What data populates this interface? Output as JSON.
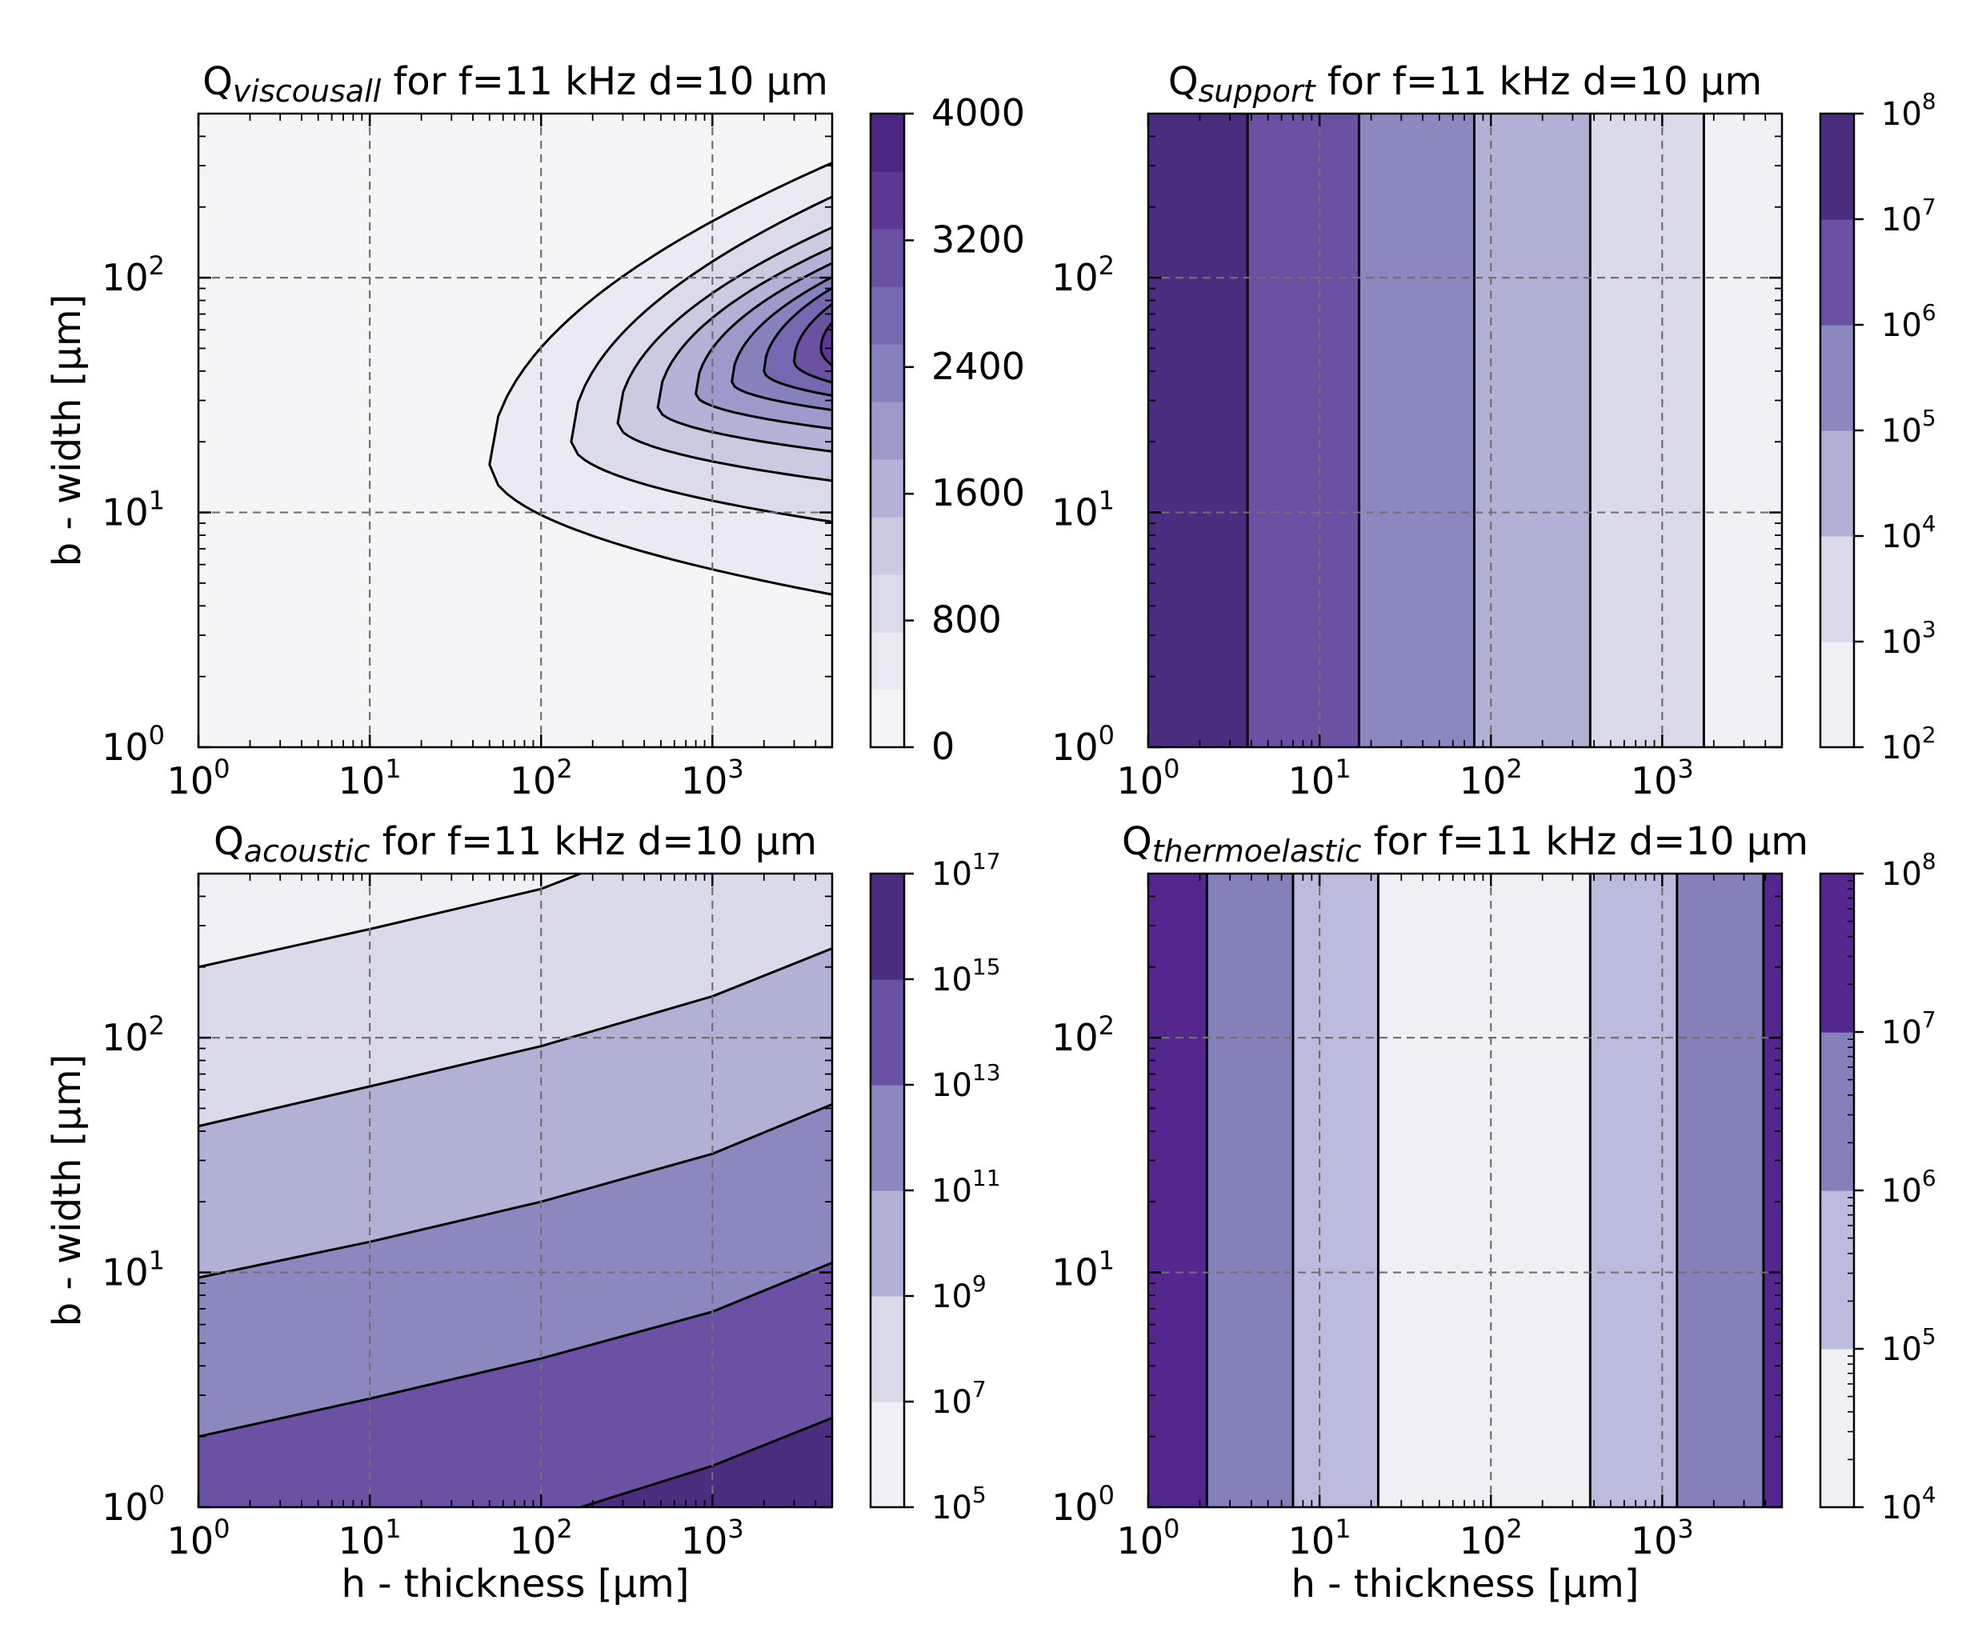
{
  "figure": {
    "kind": "2x2 contour-filled subplot grid"
  },
  "chart_data": [
    {
      "type": "heatmap",
      "id": "viscous",
      "title_main": "Q",
      "title_sub": "viscousall",
      "title_rest": " for f=11 kHz d=10 µm",
      "xlabel": "",
      "ylabel": "b - width [µm]",
      "xscale": "log",
      "yscale": "log",
      "xlim": [
        1,
        5000
      ],
      "ylim": [
        1,
        500
      ],
      "xticks": [
        {
          "v": 1,
          "m": "10",
          "e": "0"
        },
        {
          "v": 10,
          "m": "10",
          "e": "1"
        },
        {
          "v": 100,
          "m": "10",
          "e": "2"
        },
        {
          "v": 1000,
          "m": "10",
          "e": "3"
        }
      ],
      "yticks": [
        {
          "v": 1,
          "m": "10",
          "e": "0"
        },
        {
          "v": 10,
          "m": "10",
          "e": "1"
        },
        {
          "v": 100,
          "m": "10",
          "e": "2"
        }
      ],
      "grid": true,
      "pattern": "nested",
      "background_color": "#f5f5f7",
      "contours": [
        {
          "level": 400,
          "xmin": 50,
          "ylow": 4.4,
          "ypeak": 16,
          "yhigh": 320,
          "color": "#ebe9f3"
        },
        {
          "level": 800,
          "xmin": 150,
          "ylow": 9,
          "ypeak": 20,
          "yhigh": 230,
          "color": "#dcdbec"
        },
        {
          "level": 1200,
          "xmin": 280,
          "ylow": 13.5,
          "ypeak": 24,
          "yhigh": 170,
          "color": "#cacae3"
        },
        {
          "level": 1600,
          "xmin": 480,
          "ylow": 18,
          "ypeak": 28,
          "yhigh": 140,
          "color": "#b4b2d7"
        },
        {
          "level": 2000,
          "xmin": 800,
          "ylow": 22.5,
          "ypeak": 32,
          "yhigh": 120,
          "color": "#9d9acb"
        },
        {
          "level": 2400,
          "xmin": 1300,
          "ylow": 27,
          "ypeak": 36,
          "yhigh": 105,
          "color": "#8582bd"
        },
        {
          "level": 2800,
          "xmin": 2000,
          "ylow": 31,
          "ypeak": 40,
          "yhigh": 95,
          "color": "#7667b0"
        },
        {
          "level": 3200,
          "xmin": 3000,
          "ylow": 35,
          "ypeak": 44,
          "yhigh": 82,
          "color": "#6b51a2"
        },
        {
          "level": 3600,
          "xmin": 4300,
          "ylow": 40,
          "ypeak": 50,
          "yhigh": 70,
          "color": "#5d3894"
        }
      ],
      "colorbar": {
        "scale": "linear",
        "range": [
          0,
          4000
        ],
        "bands": [
          "#f5f5f7",
          "#ebe9f3",
          "#dcdbec",
          "#cacae3",
          "#b4b2d7",
          "#9d9acb",
          "#8582bd",
          "#7667b0",
          "#6b51a2",
          "#5d3894",
          "#4b2683"
        ],
        "ticks": [
          {
            "v": 0,
            "t": "0"
          },
          {
            "v": 800,
            "t": "800"
          },
          {
            "v": 1600,
            "t": "1600"
          },
          {
            "v": 2400,
            "t": "2400"
          },
          {
            "v": 3200,
            "t": "3200"
          },
          {
            "v": 4000,
            "t": "4000"
          }
        ]
      }
    },
    {
      "type": "heatmap",
      "id": "support",
      "title_main": "Q",
      "title_sub": "support",
      "title_rest": " for f=11 kHz d=10 µm",
      "xlabel": "",
      "ylabel": "",
      "xscale": "log",
      "yscale": "log",
      "xlim": [
        1,
        5000
      ],
      "ylim": [
        1,
        500
      ],
      "xticks": [
        {
          "v": 1,
          "m": "10",
          "e": "0"
        },
        {
          "v": 10,
          "m": "10",
          "e": "1"
        },
        {
          "v": 100,
          "m": "10",
          "e": "2"
        },
        {
          "v": 1000,
          "m": "10",
          "e": "3"
        }
      ],
      "yticks": [
        {
          "v": 1,
          "m": "10",
          "e": "0"
        },
        {
          "v": 10,
          "m": "10",
          "e": "1"
        },
        {
          "v": 100,
          "m": "10",
          "e": "2"
        }
      ],
      "grid": true,
      "pattern": "vertical",
      "boundaries_x": [
        3.8,
        17,
        80,
        380,
        1750
      ],
      "regions": [
        {
          "range": "1e7–1e8",
          "color": "#4a2d7f"
        },
        {
          "range": "1e6–1e7",
          "color": "#6a51a3"
        },
        {
          "range": "1e5–1e6",
          "color": "#8a88be"
        },
        {
          "range": "1e4–1e5",
          "color": "#b1b0d5"
        },
        {
          "range": "1e3–1e4",
          "color": "#dadaeb"
        },
        {
          "range": "1e2–1e3",
          "color": "#f2f0f7"
        }
      ],
      "colorbar": {
        "scale": "log",
        "range": [
          2,
          8
        ],
        "bands": [
          "#f2f0f7",
          "#dadaeb",
          "#b1b0d5",
          "#8a88be",
          "#6a51a3",
          "#4a2d7f"
        ],
        "ticks": [
          {
            "v": 2,
            "m": "10",
            "e": "2"
          },
          {
            "v": 3,
            "m": "10",
            "e": "3"
          },
          {
            "v": 4,
            "m": "10",
            "e": "4"
          },
          {
            "v": 5,
            "m": "10",
            "e": "5"
          },
          {
            "v": 6,
            "m": "10",
            "e": "6"
          },
          {
            "v": 7,
            "m": "10",
            "e": "7"
          },
          {
            "v": 8,
            "m": "10",
            "e": "8"
          }
        ]
      }
    },
    {
      "type": "heatmap",
      "id": "acoustic",
      "title_main": "Q",
      "title_sub": "acoustic",
      "title_rest": " for f=11 kHz d=10 µm",
      "xlabel": "h - thickness [µm]",
      "ylabel": "b - width [µm]",
      "xscale": "log",
      "yscale": "log",
      "xlim": [
        1,
        5000
      ],
      "ylim": [
        1,
        500
      ],
      "xticks": [
        {
          "v": 1,
          "m": "10",
          "e": "0"
        },
        {
          "v": 10,
          "m": "10",
          "e": "1"
        },
        {
          "v": 100,
          "m": "10",
          "e": "2"
        },
        {
          "v": 1000,
          "m": "10",
          "e": "3"
        }
      ],
      "yticks": [
        {
          "v": 1,
          "m": "10",
          "e": "0"
        },
        {
          "v": 10,
          "m": "10",
          "e": "1"
        },
        {
          "v": 100,
          "m": "10",
          "e": "2"
        }
      ],
      "grid": true,
      "pattern": "bands",
      "top_color": "#f2f0f7",
      "curves": [
        {
          "level": "1e7",
          "points": [
            [
              1,
              200
            ],
            [
              10,
              290
            ],
            [
              100,
              430
            ],
            [
              170,
              500
            ]
          ],
          "below_color": "#dadaeb"
        },
        {
          "level": "1e9",
          "points": [
            [
              1,
              42
            ],
            [
              10,
              62
            ],
            [
              100,
              92
            ],
            [
              1000,
              150
            ],
            [
              5000,
              240
            ]
          ],
          "below_color": "#b1b0d5"
        },
        {
          "level": "1e11",
          "points": [
            [
              1,
              9.5
            ],
            [
              10,
              13.5
            ],
            [
              100,
              20
            ],
            [
              1000,
              32
            ],
            [
              5000,
              52
            ]
          ],
          "below_color": "#8a88be"
        },
        {
          "level": "1e13",
          "points": [
            [
              1,
              2
            ],
            [
              10,
              2.9
            ],
            [
              100,
              4.3
            ],
            [
              1000,
              6.8
            ],
            [
              5000,
              11
            ]
          ],
          "below_color": "#6a51a3"
        },
        {
          "level": "1e15",
          "points": [
            [
              170,
              1
            ],
            [
              1000,
              1.5
            ],
            [
              5000,
              2.4
            ]
          ],
          "below_color": "#4a2d7f"
        }
      ],
      "colorbar": {
        "scale": "log",
        "range": [
          5,
          17
        ],
        "bands": [
          "#f2f0f7",
          "#dadaeb",
          "#b1b0d5",
          "#8a88be",
          "#6a51a3",
          "#4a2d7f"
        ],
        "ticks": [
          {
            "v": 5,
            "m": "10",
            "e": "5"
          },
          {
            "v": 7,
            "m": "10",
            "e": "7"
          },
          {
            "v": 9,
            "m": "10",
            "e": "9"
          },
          {
            "v": 11,
            "m": "10",
            "e": "11"
          },
          {
            "v": 13,
            "m": "10",
            "e": "13"
          },
          {
            "v": 15,
            "m": "10",
            "e": "15"
          },
          {
            "v": 17,
            "m": "10",
            "e": "17"
          }
        ]
      }
    },
    {
      "type": "heatmap",
      "id": "thermoelastic",
      "title_main": "Q",
      "title_sub": "thermoelastic",
      "title_rest": " for f=11 kHz d=10 µm",
      "xlabel": "h - thickness [µm]",
      "ylabel": "",
      "xscale": "log",
      "yscale": "log",
      "xlim": [
        1,
        5000
      ],
      "ylim": [
        1,
        500
      ],
      "xticks": [
        {
          "v": 1,
          "m": "10",
          "e": "0"
        },
        {
          "v": 10,
          "m": "10",
          "e": "1"
        },
        {
          "v": 100,
          "m": "10",
          "e": "2"
        },
        {
          "v": 1000,
          "m": "10",
          "e": "3"
        }
      ],
      "yticks": [
        {
          "v": 1,
          "m": "10",
          "e": "0"
        },
        {
          "v": 10,
          "m": "10",
          "e": "1"
        },
        {
          "v": 100,
          "m": "10",
          "e": "2"
        }
      ],
      "grid": true,
      "pattern": "vertical",
      "boundaries_x": [
        2.2,
        7,
        22,
        380,
        1220,
        3900
      ],
      "regions": [
        {
          "range": "1e7–1e8",
          "color": "#54278f"
        },
        {
          "range": "1e6–1e7",
          "color": "#8480ba"
        },
        {
          "range": "1e5–1e6",
          "color": "#bbbbdd"
        },
        {
          "range": "1e4–1e5",
          "color": "#f0eff5"
        },
        {
          "range": "1e5–1e6",
          "color": "#bbbbdd"
        },
        {
          "range": "1e6–1e7",
          "color": "#8480ba"
        },
        {
          "range": "1e7–1e8",
          "color": "#54278f"
        }
      ],
      "colorbar": {
        "scale": "log",
        "range": [
          4,
          8
        ],
        "bands": [
          "#f0eff5",
          "#bbbbdd",
          "#8480ba",
          "#54278f"
        ],
        "ticks": [
          {
            "v": 4,
            "m": "10",
            "e": "4"
          },
          {
            "v": 5,
            "m": "10",
            "e": "5"
          },
          {
            "v": 6,
            "m": "10",
            "e": "6"
          },
          {
            "v": 7,
            "m": "10",
            "e": "7"
          },
          {
            "v": 8,
            "m": "10",
            "e": "8"
          }
        ]
      }
    }
  ]
}
